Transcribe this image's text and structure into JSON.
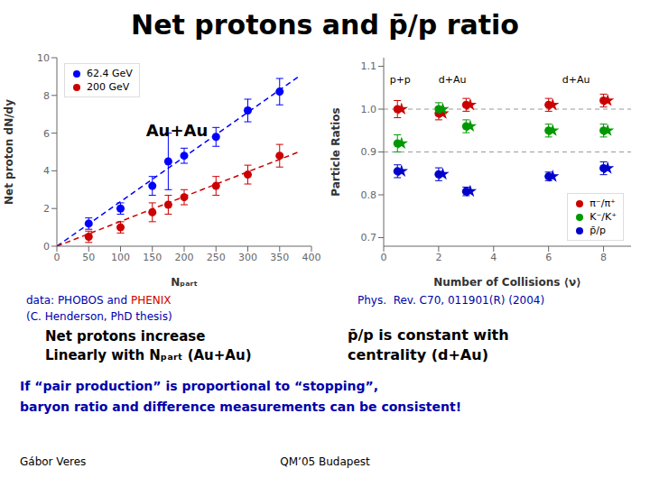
{
  "title": "Net protons and p̄/p ratio",
  "chart_data": [
    {
      "type": "scatter",
      "xlabel": "Nₚₐᵣₜ",
      "ylabel": "Net proton dN/dy",
      "xlim": [
        0,
        400
      ],
      "ylim": [
        0,
        10
      ],
      "xticks": [
        0,
        50,
        100,
        150,
        200,
        250,
        300,
        350,
        400
      ],
      "yticks": [
        0,
        2,
        4,
        6,
        8,
        10
      ],
      "legend": "upper left",
      "annotations": [
        {
          "text": "Au+Au"
        }
      ],
      "series": [
        {
          "type": "line",
          "color": "#0000ff",
          "line_style": "dashed",
          "marker": "none",
          "x": [
            0,
            380
          ],
          "values": [
            0,
            9.0
          ]
        },
        {
          "type": "line",
          "color": "#cc0000",
          "line_style": "dashed",
          "marker": "none",
          "x": [
            0,
            380
          ],
          "values": [
            0,
            5.0
          ]
        },
        {
          "name": "62.4 GeV",
          "type": "scatter",
          "color": "#0000ff",
          "marker": "circle",
          "x": [
            50,
            100,
            150,
            175,
            200,
            250,
            300,
            350
          ],
          "values": [
            1.2,
            2.0,
            3.2,
            4.5,
            4.8,
            5.8,
            7.2,
            8.2
          ],
          "errors": [
            0.3,
            0.3,
            0.5,
            1.5,
            0.4,
            0.5,
            0.6,
            0.7
          ]
        },
        {
          "name": "200 GeV",
          "type": "scatter",
          "color": "#cc0000",
          "marker": "circle",
          "x": [
            50,
            100,
            150,
            175,
            200,
            250,
            300,
            350
          ],
          "values": [
            0.5,
            1.0,
            1.8,
            2.2,
            2.6,
            3.2,
            3.8,
            4.8
          ],
          "errors": [
            0.3,
            0.3,
            0.5,
            0.5,
            0.4,
            0.5,
            0.5,
            0.6
          ]
        }
      ]
    },
    {
      "type": "scatter",
      "xlabel": "Number of Collisions ⟨ν⟩",
      "ylabel": "Particle Ratios",
      "xlim": [
        0,
        9
      ],
      "ylim": [
        0.68,
        1.12
      ],
      "xticks": [
        0,
        2,
        4,
        6,
        8
      ],
      "yticks": [
        0.7,
        0.8,
        0.9,
        {
          "value": 1.0,
          "label": "1.0"
        },
        1.1
      ],
      "legend": "lower right",
      "reference_lines": [
        0.9,
        1.0
      ],
      "annotations": [
        {
          "text": "p+p",
          "x": 0.6,
          "y": 1.09
        },
        {
          "text": "d+Au",
          "x": 2.5,
          "y": 1.09
        },
        {
          "text": "d+Au",
          "x": 7.0,
          "y": 1.09
        }
      ],
      "series": [
        {
          "name": "π⁻/π⁺",
          "type": "scatter",
          "color": "#cc0000",
          "marker": "circle",
          "x": [
            0.5,
            2.0,
            3.0,
            6.0,
            8.0
          ],
          "values": [
            1.0,
            0.99,
            1.01,
            1.01,
            1.02
          ],
          "errors": [
            0.02,
            0.015,
            0.015,
            0.015,
            0.015
          ]
        },
        {
          "type": "scatter",
          "color": "#cc0000",
          "marker": "star",
          "x": [
            0.65,
            2.15,
            3.15,
            6.15,
            8.15
          ],
          "values": [
            1.0,
            0.99,
            1.01,
            1.01,
            1.02
          ]
        },
        {
          "name": "K⁻/K⁺",
          "type": "scatter",
          "color": "#009900",
          "marker": "circle",
          "x": [
            0.5,
            2.0,
            3.0,
            6.0,
            8.0
          ],
          "values": [
            0.92,
            1.0,
            0.96,
            0.95,
            0.95
          ],
          "errors": [
            0.02,
            0.015,
            0.015,
            0.015,
            0.015
          ]
        },
        {
          "type": "scatter",
          "color": "#009900",
          "marker": "star",
          "x": [
            0.65,
            2.15,
            3.15,
            6.15,
            8.15
          ],
          "values": [
            0.92,
            1.0,
            0.96,
            0.95,
            0.95
          ]
        },
        {
          "name": "p̄/p",
          "type": "scatter",
          "color": "#0000cc",
          "marker": "circle",
          "x": [
            0.5,
            2.0,
            3.0,
            6.0,
            8.0
          ],
          "values": [
            0.855,
            0.848,
            0.808,
            0.843,
            0.862
          ],
          "errors": [
            0.015,
            0.015,
            0.01,
            0.01,
            0.015
          ]
        },
        {
          "type": "scatter",
          "color": "#0000cc",
          "marker": "star",
          "x": [
            0.65,
            2.15,
            3.15,
            6.15,
            8.15
          ],
          "values": [
            0.855,
            0.848,
            0.808,
            0.843,
            0.862
          ]
        }
      ]
    }
  ],
  "annotations": [
    {
      "text": "data: PHOBOS and",
      "color": "#0000aa"
    },
    {
      "text": "PHENIX",
      "color": "#cc0000"
    },
    {
      "text": "(C. Henderson, PhD thesis)",
      "color": "#0000aa"
    },
    {
      "text": "Net protons increase",
      "color": "#000000"
    },
    {
      "text": "Linearly with Nₚₐᵣₜ (Au+Au)",
      "color": "#000000"
    },
    {
      "text": "Phys.  Rev. C70, 011901(R) (2004)",
      "color": "#0000aa"
    },
    {
      "text": "p̄/p is constant with",
      "color": "#000000"
    },
    {
      "text": "centrality (d+Au)",
      "color": "#000000"
    },
    {
      "text": "If “pair production” is proportional to “stopping”,",
      "color": "#0000aa"
    },
    {
      "text": "baryon ratio and difference measurements can be consistent!",
      "color": "#0000aa"
    },
    {
      "text": "Gábor Veres",
      "color": "#000000"
    },
    {
      "text": "QM’05 Budapest",
      "color": "#000000"
    }
  ]
}
